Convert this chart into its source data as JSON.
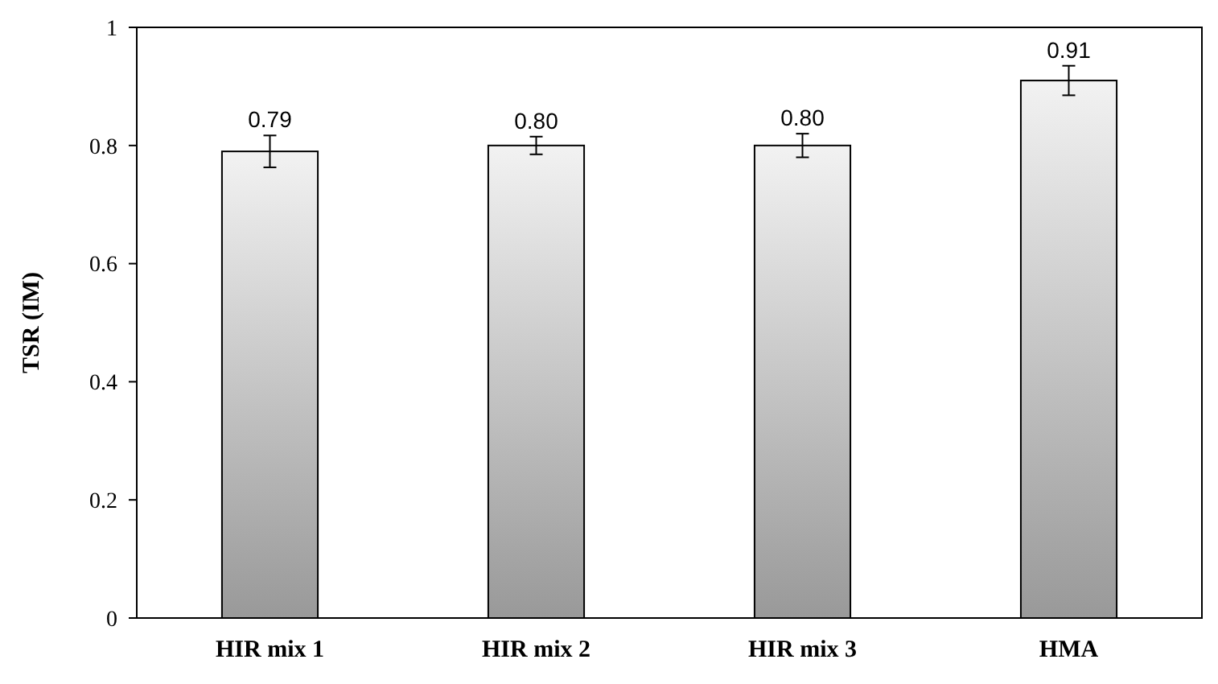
{
  "chart_data": {
    "type": "bar",
    "ylabel": "TSR (IM)",
    "categories": [
      "HIR mix 1",
      "HIR mix 2",
      "HIR mix 3",
      "HMA"
    ],
    "values": [
      0.79,
      0.8,
      0.8,
      0.91
    ],
    "errors": [
      0.027,
      0.015,
      0.02,
      0.025
    ],
    "value_labels": [
      "0.79",
      "0.80",
      "0.80",
      "0.91"
    ],
    "ylim": [
      0,
      1
    ],
    "yticks": [
      0,
      0.2,
      0.4,
      0.6,
      0.8,
      1
    ],
    "grid": false
  }
}
